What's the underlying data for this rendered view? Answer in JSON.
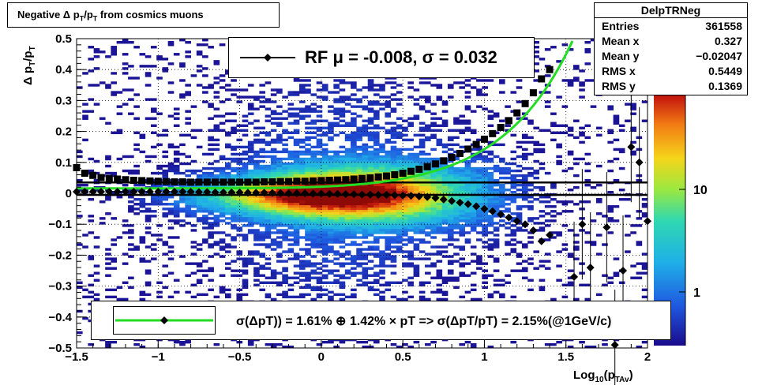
{
  "title": "Negative Δ p_T/p_T from cosmics muons",
  "stats": {
    "name": "DelpTRNeg",
    "rows": [
      {
        "label": "Entries",
        "value": "361558"
      },
      {
        "label": "Mean x",
        "value": "0.327"
      },
      {
        "label": "Mean y",
        "value": "−0.02047"
      },
      {
        "label": "RMS x",
        "value": "0.5449"
      },
      {
        "label": "RMS y",
        "value": "0.1369"
      }
    ]
  },
  "legend_top": "RF μ = -0.008, σ =   0.032",
  "legend_bottom": "σ(ΔpT)) =  1.61% ⊕  1.42% × pT => σ(ΔpT/pT) =  2.15%(@1GeV/c)",
  "colors": {
    "fit_curve": "#22dd22",
    "markers": "#000000",
    "frame": "#000000"
  },
  "chart_data": {
    "type": "heatmap",
    "title": "Negative Δ p_T/p_T from cosmics muons",
    "xlabel": "Log_10(p_TAv)",
    "ylabel": "Δ p_T/p_T",
    "xlim": [
      -1.5,
      2
    ],
    "ylim": [
      -0.5,
      0.5
    ],
    "z_scale": "log",
    "z_ticks": [
      "1",
      "10"
    ],
    "grid": true,
    "x_ticks": [
      "−1.5",
      "−1",
      "−0.5",
      "0",
      "0.5",
      "1",
      "1.5",
      "2"
    ],
    "y_ticks": [
      "−0.5",
      "−0.4",
      "−0.3",
      "−0.2",
      "−0.1",
      "0",
      "0.1",
      "0.2",
      "0.3",
      "0.4",
      "0.5"
    ],
    "x_tick_values": [
      -1.5,
      -1,
      -0.5,
      0,
      0.5,
      1,
      1.5,
      2
    ],
    "y_tick_values": [
      -0.5,
      -0.4,
      -0.3,
      -0.2,
      -0.1,
      0,
      0.1,
      0.2,
      0.3,
      0.4,
      0.5
    ],
    "horizontal_lines": [
      0.035,
      -0.005
    ],
    "fit_curve": {
      "sigma_const": 0.0161,
      "sigma_slope": 0.0142
    },
    "series": [
      {
        "name": "sigma",
        "marker": "square",
        "x": [
          -1.5,
          -1.45,
          -1.4,
          -1.35,
          -1.3,
          -1.25,
          -1.2,
          -1.15,
          -1.1,
          -1.05,
          -1.0,
          -0.95,
          -0.9,
          -0.85,
          -0.8,
          -0.75,
          -0.7,
          -0.65,
          -0.6,
          -0.55,
          -0.5,
          -0.45,
          -0.4,
          -0.35,
          -0.3,
          -0.25,
          -0.2,
          -0.15,
          -0.1,
          -0.05,
          0.0,
          0.05,
          0.1,
          0.15,
          0.2,
          0.25,
          0.3,
          0.35,
          0.4,
          0.45,
          0.5,
          0.55,
          0.6,
          0.65,
          0.7,
          0.75,
          0.8,
          0.85,
          0.9,
          0.95,
          1.0,
          1.05,
          1.1,
          1.15,
          1.2,
          1.25,
          1.3,
          1.35,
          1.4
        ],
        "y": [
          0.083,
          0.065,
          0.058,
          0.051,
          0.048,
          0.046,
          0.044,
          0.042,
          0.041,
          0.04,
          0.039,
          0.038,
          0.037,
          0.037,
          0.036,
          0.036,
          0.036,
          0.036,
          0.036,
          0.036,
          0.036,
          0.036,
          0.036,
          0.037,
          0.037,
          0.038,
          0.038,
          0.039,
          0.039,
          0.04,
          0.041,
          0.042,
          0.043,
          0.044,
          0.046,
          0.048,
          0.05,
          0.053,
          0.056,
          0.06,
          0.065,
          0.071,
          0.078,
          0.086,
          0.095,
          0.105,
          0.116,
          0.129,
          0.143,
          0.158,
          0.175,
          0.193,
          0.213,
          0.235,
          0.26,
          0.29,
          0.325,
          0.37,
          0.4
        ]
      },
      {
        "name": "mean",
        "marker": "diamond",
        "x": [
          -1.5,
          -1.45,
          -1.4,
          -1.35,
          -1.3,
          -1.25,
          -1.2,
          -1.15,
          -1.1,
          -1.05,
          -1.0,
          -0.95,
          -0.9,
          -0.85,
          -0.8,
          -0.75,
          -0.7,
          -0.65,
          -0.6,
          -0.55,
          -0.5,
          -0.45,
          -0.4,
          -0.35,
          -0.3,
          -0.25,
          -0.2,
          -0.15,
          -0.1,
          -0.05,
          0.0,
          0.05,
          0.1,
          0.15,
          0.2,
          0.25,
          0.3,
          0.35,
          0.4,
          0.45,
          0.5,
          0.55,
          0.6,
          0.65,
          0.7,
          0.75,
          0.8,
          0.85,
          0.9,
          0.95,
          1.0,
          1.05,
          1.1,
          1.15,
          1.2,
          1.25,
          1.3,
          1.35,
          1.4,
          1.55,
          1.6,
          1.65,
          1.75,
          1.8,
          1.85,
          1.9,
          1.95,
          2.0
        ],
        "y": [
          0.005,
          0.005,
          0.005,
          0.005,
          0.005,
          0.005,
          0.005,
          0.005,
          0.005,
          0.005,
          0.005,
          0.005,
          0.005,
          0.005,
          0.005,
          0.004,
          0.004,
          0.003,
          0.003,
          0.003,
          0.003,
          0.002,
          0.002,
          0.002,
          0.001,
          0.001,
          0.0,
          0.0,
          0.0,
          -0.001,
          -0.001,
          -0.002,
          -0.002,
          -0.003,
          -0.003,
          -0.004,
          -0.004,
          -0.005,
          -0.005,
          -0.006,
          -0.007,
          -0.008,
          -0.01,
          -0.012,
          -0.015,
          -0.02,
          -0.025,
          -0.03,
          -0.035,
          -0.042,
          -0.05,
          -0.058,
          -0.068,
          -0.078,
          -0.09,
          -0.1,
          -0.12,
          -0.155,
          -0.135,
          -0.27,
          -0.1,
          -0.24,
          -0.11,
          -0.49,
          -0.25,
          0.15,
          0.1,
          -0.09
        ]
      }
    ]
  }
}
